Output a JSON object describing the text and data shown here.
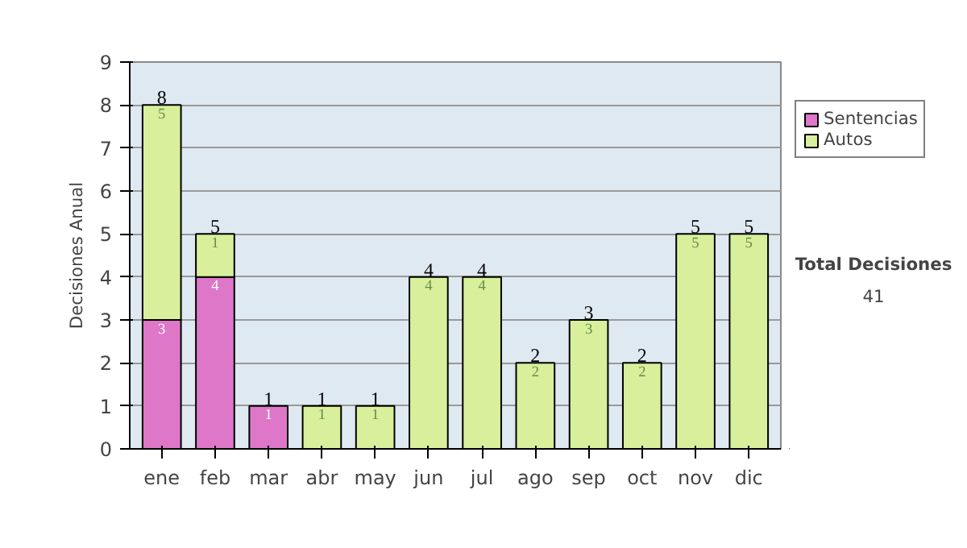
{
  "chart_data": {
    "type": "bar",
    "stacked": true,
    "ylabel": "Decisiones Anual",
    "categories": [
      "ene",
      "feb",
      "mar",
      "abr",
      "may",
      "jun",
      "jul",
      "ago",
      "sep",
      "oct",
      "nov",
      "dic"
    ],
    "series": [
      {
        "name": "Sentencias",
        "color": "#de77c8",
        "values": [
          3,
          4,
          1,
          0,
          0,
          0,
          0,
          0,
          0,
          0,
          0,
          0
        ],
        "value_labels": [
          "3",
          "4",
          "1",
          null,
          null,
          null,
          null,
          null,
          null,
          null,
          null,
          null
        ]
      },
      {
        "name": "Autos",
        "color": "#d8f09c",
        "values": [
          5,
          1,
          0,
          1,
          1,
          4,
          4,
          2,
          3,
          2,
          5,
          5
        ],
        "value_labels": [
          "5",
          "1",
          null,
          "1",
          "1",
          "4",
          "4",
          "2",
          "3",
          "2",
          "5",
          "5"
        ]
      }
    ],
    "totals": [
      "8",
      "5",
      "1",
      "1",
      "1",
      "4",
      "4",
      "2",
      "3",
      "2",
      "5",
      "5"
    ],
    "ylim": [
      0,
      9
    ],
    "yticks": [
      0,
      1,
      2,
      3,
      4,
      5,
      6,
      7,
      8,
      9
    ],
    "grid": "y",
    "legend": "right",
    "annotations": [
      "Total Decisiones",
      "41"
    ]
  }
}
